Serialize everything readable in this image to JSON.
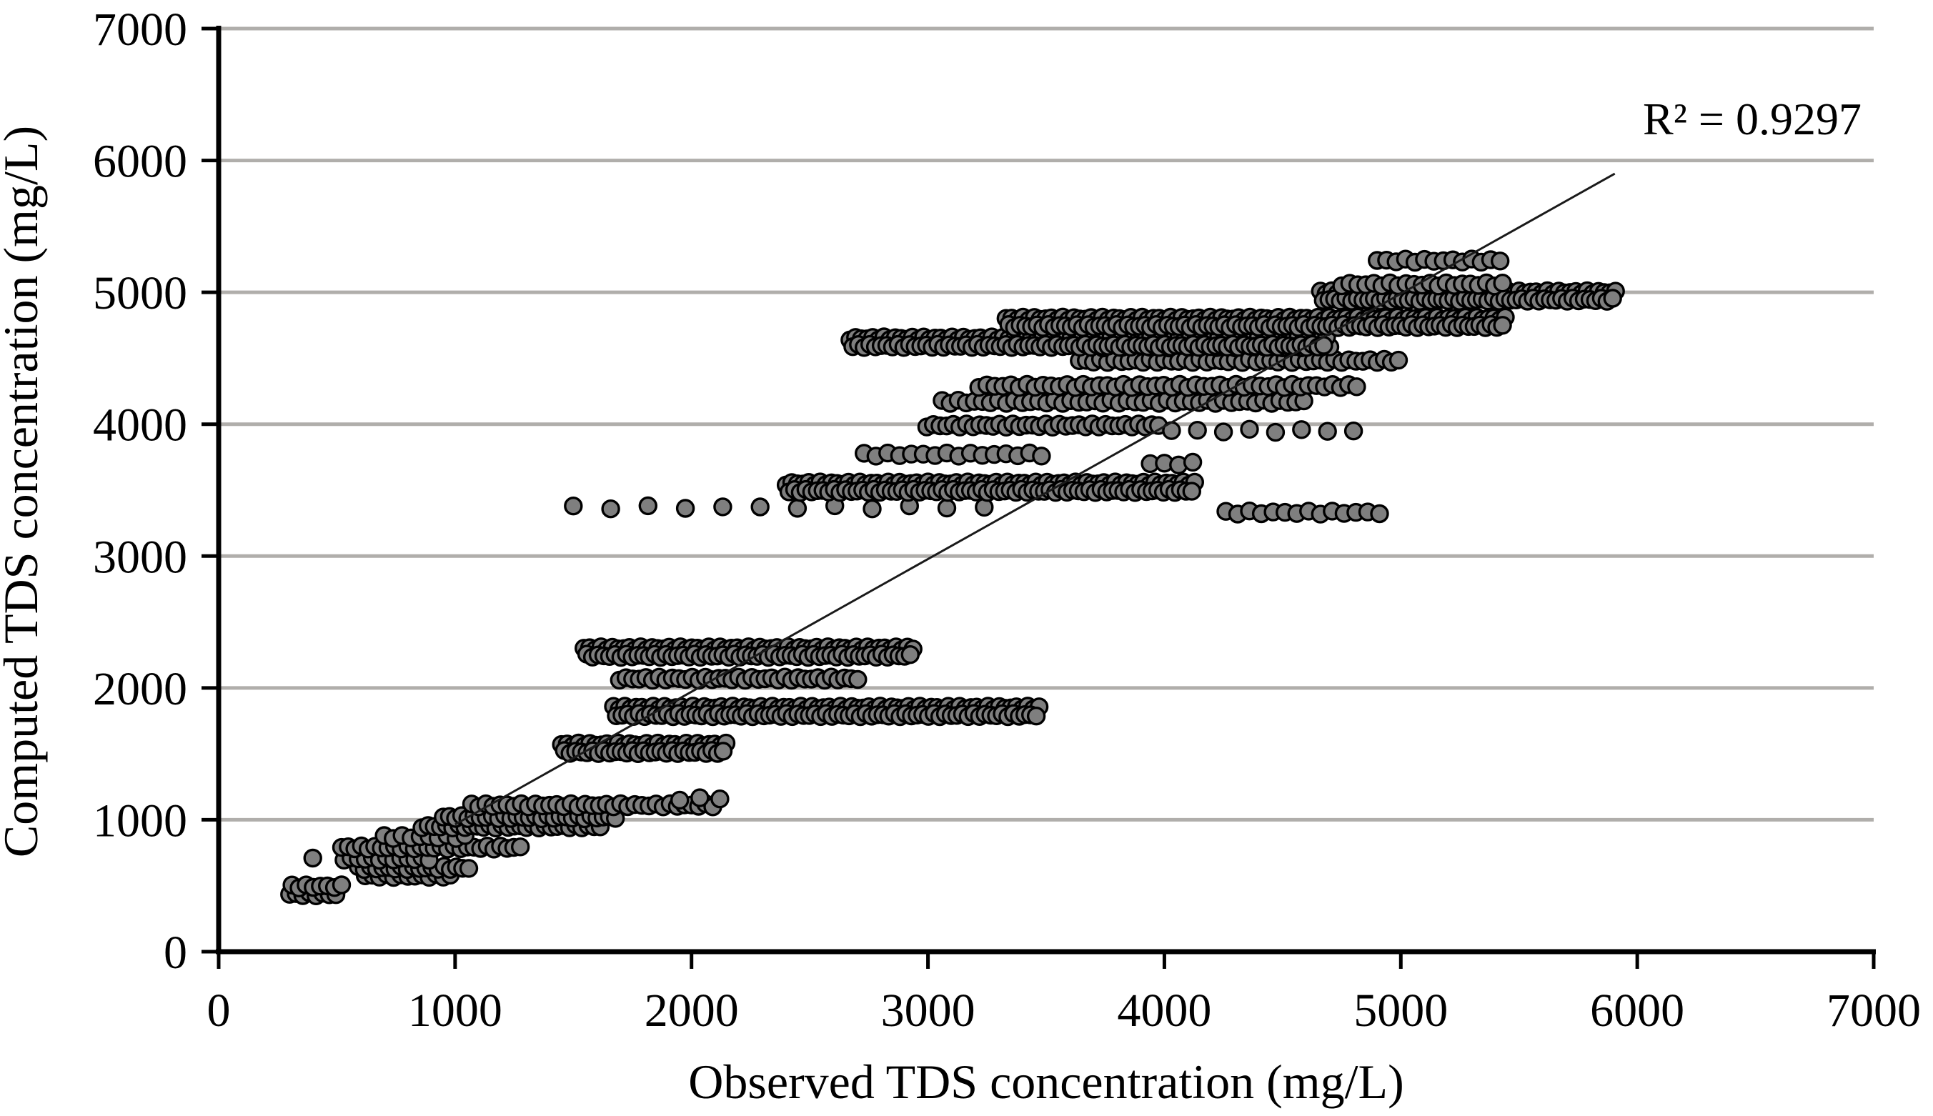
{
  "chart_data": {
    "type": "scatter",
    "title": "",
    "xlabel": "Observed TDS concentration (mg/L)",
    "ylabel": "Computed TDS concentration (mg/L)",
    "annotation_text": "R² = 0.9297",
    "r_squared": 0.9297,
    "xlim": [
      0,
      7000
    ],
    "ylim": [
      0,
      7000
    ],
    "xticks": [
      0,
      1000,
      2000,
      3000,
      4000,
      5000,
      6000,
      7000
    ],
    "yticks": [
      0,
      1000,
      2000,
      3000,
      4000,
      5000,
      6000,
      7000
    ],
    "grid": "horizontal-gridlines-only",
    "legend": "none",
    "colors": {
      "marker_fill": "#7f7f7f",
      "marker_stroke": "#000000",
      "gridline": "#b0aeab",
      "axis": "#000000",
      "trendline": "#1a1a1a"
    },
    "marker": {
      "radius_px": 11.5,
      "stroke_width_px": 3.4
    },
    "trendline": {
      "x1": 1000,
      "y1": 965,
      "x2": 5905,
      "y2": 5900
    },
    "point_bands_note": "Each band is a horizontal run of overlapping markers: computed value (mg/L), observed start/end (mg/L), spacing step; thick bands are two marker rows deep.",
    "point_bands": [
      {
        "computed": 435,
        "obs_start": 300,
        "obs_end": 520,
        "step": 28,
        "thick": false
      },
      {
        "computed": 495,
        "obs_start": 310,
        "obs_end": 535,
        "step": 30,
        "thick": false
      },
      {
        "computed": 720,
        "obs_start": 398,
        "obs_end": 538,
        "step": 137,
        "thick": false
      },
      {
        "computed": 575,
        "obs_start": 620,
        "obs_end": 1000,
        "step": 30,
        "thick": false
      },
      {
        "computed": 635,
        "obs_start": 590,
        "obs_end": 1080,
        "step": 26,
        "thick": false
      },
      {
        "computed": 705,
        "obs_start": 530,
        "obs_end": 900,
        "step": 30,
        "thick": false
      },
      {
        "computed": 790,
        "obs_start": 520,
        "obs_end": 1300,
        "step": 28,
        "thick": false
      },
      {
        "computed": 870,
        "obs_start": 700,
        "obs_end": 1070,
        "step": 38,
        "thick": false
      },
      {
        "computed": 950,
        "obs_start": 860,
        "obs_end": 1620,
        "step": 26,
        "thick": false
      },
      {
        "computed": 1020,
        "obs_start": 950,
        "obs_end": 1700,
        "step": 26,
        "thick": false
      },
      {
        "computed": 1110,
        "obs_start": 1070,
        "obs_end": 2100,
        "step": 30,
        "thick": false
      },
      {
        "computed": 1160,
        "obs_start": 1950,
        "obs_end": 2120,
        "step": 85,
        "thick": false
      },
      {
        "computed": 1570,
        "obs_start": 1450,
        "obs_end": 2150,
        "step": 24,
        "thick": true
      },
      {
        "computed": 1850,
        "obs_start": 1670,
        "obs_end": 3490,
        "step": 24,
        "thick": true
      },
      {
        "computed": 2070,
        "obs_start": 1695,
        "obs_end": 2720,
        "step": 28,
        "thick": false
      },
      {
        "computed": 2300,
        "obs_start": 1545,
        "obs_end": 2940,
        "step": 24,
        "thick": true
      },
      {
        "computed": 3370,
        "obs_start": 1500,
        "obs_end": 3250,
        "step": 158,
        "thick": false
      },
      {
        "computed": 3550,
        "obs_start": 2400,
        "obs_end": 4140,
        "step": 24,
        "thick": true
      },
      {
        "computed": 3700,
        "obs_start": 3940,
        "obs_end": 4140,
        "step": 60,
        "thick": false
      },
      {
        "computed": 3770,
        "obs_start": 2730,
        "obs_end": 3490,
        "step": 50,
        "thick": false
      },
      {
        "computed": 3990,
        "obs_start": 2995,
        "obs_end": 4000,
        "step": 28,
        "thick": false
      },
      {
        "computed": 3950,
        "obs_start": 4030,
        "obs_end": 4850,
        "step": 110,
        "thick": false
      },
      {
        "computed": 4170,
        "obs_start": 3060,
        "obs_end": 4600,
        "step": 34,
        "thick": false
      },
      {
        "computed": 4290,
        "obs_start": 3215,
        "obs_end": 4830,
        "step": 34,
        "thick": false
      },
      {
        "computed": 4480,
        "obs_start": 3640,
        "obs_end": 5000,
        "step": 30,
        "thick": false
      },
      {
        "computed": 4590,
        "obs_start": 3700,
        "obs_end": 4730,
        "step": 40,
        "thick": false
      },
      {
        "computed": 4650,
        "obs_start": 2670,
        "obs_end": 4700,
        "step": 24,
        "thick": true
      },
      {
        "computed": 4800,
        "obs_start": 3330,
        "obs_end": 5460,
        "step": 24,
        "thick": true
      },
      {
        "computed": 5000,
        "obs_start": 4660,
        "obs_end": 5910,
        "step": 24,
        "thick": true
      },
      {
        "computed": 5060,
        "obs_start": 4750,
        "obs_end": 5430,
        "step": 34,
        "thick": false
      },
      {
        "computed": 5240,
        "obs_start": 4900,
        "obs_end": 5430,
        "step": 40,
        "thick": false
      },
      {
        "computed": 3330,
        "obs_start": 4260,
        "obs_end": 4950,
        "step": 50,
        "thick": false
      }
    ]
  }
}
